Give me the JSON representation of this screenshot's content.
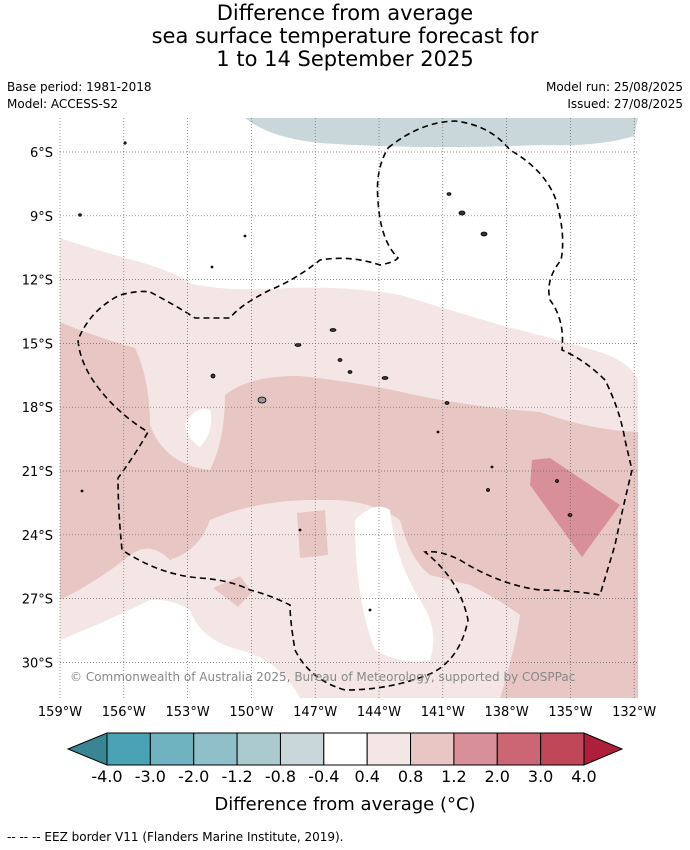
{
  "title_lines": [
    "Difference from average",
    "sea surface temperature forecast for",
    "1 to 14 September 2025"
  ],
  "meta_left": [
    "Base period: 1981-2018",
    "Model: ACCESS-S2"
  ],
  "meta_right": [
    "Model run: 25/08/2025",
    "Issued: 27/08/2025"
  ],
  "copyright": "© Commonwealth of Australia 2025, Bureau of Meteorology, supported by COSPPac",
  "lat_labels": [
    "6°S",
    "9°S",
    "12°S",
    "15°S",
    "18°S",
    "21°S",
    "24°S",
    "27°S",
    "30°S"
  ],
  "lon_labels": [
    "159°W",
    "156°W",
    "153°W",
    "150°W",
    "147°W",
    "144°W",
    "141°W",
    "138°W",
    "135°W",
    "132°W"
  ],
  "colorbar": {
    "ticks": [
      "-4.0",
      "-3.0",
      "-2.0",
      "-1.2",
      "-0.8",
      "-0.4",
      "0.4",
      "0.8",
      "1.2",
      "2.0",
      "3.0",
      "4.0"
    ],
    "colors": [
      "#4aa3b4",
      "#6fb2c0",
      "#8fc0c9",
      "#abcacf",
      "#c9d7da",
      "#ffffff",
      "#f5e6e6",
      "#e8c6c4",
      "#d98f97",
      "#cc6674",
      "#c04758"
    ],
    "low_extend_color": "#3a8594",
    "high_extend_color": "#ad1f3a",
    "title": "Difference from average (°C)"
  },
  "footnote": "--  --  -- EEZ border V11 (Flanders Marine Institute, 2019)."
}
